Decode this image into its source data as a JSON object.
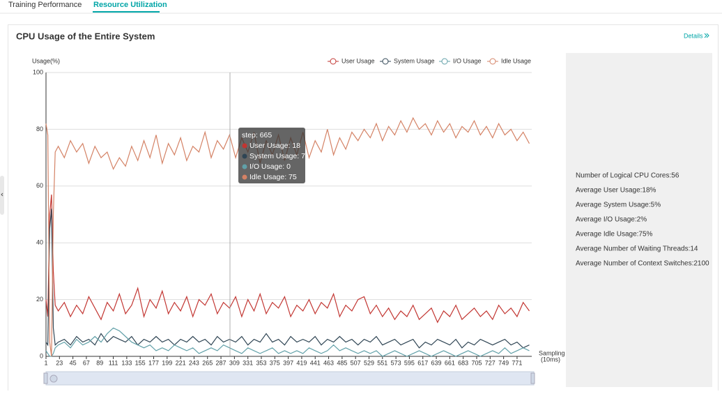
{
  "tabs": [
    "Training Performance",
    "Resource Utilization"
  ],
  "card": {
    "title": "CPU Usage of the Entire System",
    "details": "Details"
  },
  "chart_data": {
    "type": "line",
    "y_label": "Usage(%)",
    "x_label": [
      "Sampling",
      "(10ms)"
    ],
    "x": [
      1,
      4,
      7,
      10,
      13,
      16,
      21,
      31,
      41,
      51,
      61,
      71,
      81,
      91,
      101,
      111,
      121,
      131,
      141,
      151,
      161,
      171,
      181,
      191,
      201,
      211,
      221,
      231,
      241,
      251,
      261,
      271,
      281,
      291,
      301,
      311,
      321,
      331,
      341,
      351,
      361,
      371,
      381,
      391,
      401,
      411,
      421,
      431,
      441,
      451,
      461,
      471,
      481,
      491,
      501,
      511,
      521,
      531,
      541,
      551,
      561,
      571,
      581,
      591,
      601,
      611,
      621,
      631,
      641,
      651,
      661,
      671,
      681,
      691,
      701,
      711,
      721,
      731,
      741,
      751,
      761,
      771,
      781,
      791
    ],
    "xlim": [
      1,
      795
    ],
    "xticks": [
      1,
      23,
      45,
      67,
      89,
      111,
      133,
      155,
      177,
      199,
      221,
      243,
      265,
      287,
      309,
      331,
      353,
      375,
      397,
      419,
      441,
      463,
      485,
      507,
      529,
      551,
      573,
      595,
      617,
      639,
      661,
      683,
      705,
      727,
      749,
      771
    ],
    "ylim": [
      0,
      100
    ],
    "yticks": [
      0,
      20,
      40,
      60,
      80,
      100
    ],
    "grid": true,
    "series": [
      {
        "name": "User Usage",
        "color": "#c23531",
        "values": [
          20,
          14,
          50,
          57,
          30,
          18,
          16,
          19,
          14,
          18,
          15,
          21,
          17,
          13,
          19,
          16,
          22,
          15,
          18,
          24,
          14,
          20,
          17,
          23,
          15,
          19,
          16,
          21,
          14,
          20,
          18,
          22,
          15,
          19,
          17,
          21,
          14,
          20,
          16,
          22,
          15,
          19,
          17,
          21,
          14,
          18,
          16,
          20,
          15,
          19,
          17,
          22,
          14,
          18,
          16,
          20,
          21,
          15,
          18,
          14,
          17,
          13,
          16,
          14,
          18,
          13,
          15,
          17,
          12,
          16,
          14,
          18,
          13,
          15,
          17,
          14,
          16,
          13,
          18,
          15,
          17,
          14,
          19,
          16
        ]
      },
      {
        "name": "System Usage",
        "color": "#2f4554",
        "values": [
          5,
          4,
          45,
          52,
          10,
          4,
          5,
          6,
          4,
          7,
          5,
          6,
          4,
          8,
          5,
          7,
          6,
          5,
          7,
          4,
          6,
          5,
          7,
          5,
          6,
          4,
          6,
          5,
          7,
          5,
          6,
          4,
          7,
          5,
          6,
          5,
          7,
          4,
          6,
          5,
          8,
          5,
          6,
          4,
          7,
          5,
          6,
          5,
          7,
          4,
          6,
          5,
          7,
          5,
          6,
          4,
          6,
          5,
          7,
          4,
          5,
          6,
          4,
          5,
          6,
          3,
          5,
          4,
          6,
          5,
          4,
          6,
          3,
          5,
          4,
          6,
          5,
          4,
          5,
          6,
          4,
          5,
          3,
          4
        ]
      },
      {
        "name": "I/O Usage",
        "color": "#61a0a8",
        "values": [
          2,
          1,
          0,
          0,
          1,
          3,
          4,
          5,
          3,
          6,
          4,
          5,
          7,
          5,
          8,
          10,
          9,
          7,
          5,
          4,
          3,
          4,
          2,
          3,
          2,
          4,
          3,
          2,
          3,
          1,
          2,
          3,
          2,
          4,
          3,
          2,
          1,
          3,
          2,
          1,
          2,
          3,
          1,
          2,
          1,
          2,
          1,
          3,
          2,
          1,
          2,
          4,
          2,
          3,
          2,
          1,
          2,
          1,
          2,
          0,
          1,
          2,
          1,
          0,
          1,
          2,
          1,
          0,
          1,
          2,
          1,
          0,
          1,
          2,
          1,
          0,
          1,
          2,
          1,
          3,
          1,
          2,
          3,
          2
        ]
      },
      {
        "name": "Idle Usage",
        "color": "#d48265",
        "values": [
          82,
          78,
          5,
          0,
          50,
          72,
          74,
          70,
          76,
          72,
          75,
          68,
          74,
          70,
          72,
          66,
          70,
          67,
          74,
          69,
          76,
          70,
          78,
          68,
          75,
          71,
          77,
          69,
          74,
          72,
          79,
          70,
          76,
          73,
          78,
          70,
          77,
          72,
          79,
          68,
          76,
          71,
          78,
          69,
          77,
          71,
          79,
          70,
          76,
          72,
          80,
          71,
          77,
          73,
          79,
          76,
          80,
          77,
          82,
          76,
          81,
          78,
          83,
          79,
          84,
          80,
          82,
          78,
          83,
          79,
          82,
          77,
          81,
          79,
          83,
          78,
          81,
          77,
          82,
          78,
          80,
          76,
          79,
          75
        ]
      }
    ],
    "tooltip": {
      "title": "step: 665",
      "lines": [
        "User Usage: 18",
        "System Usage: 7",
        "I/O Usage: 0",
        "Idle Usage: 75"
      ]
    }
  },
  "stats": [
    "Number of Logical CPU Cores:56",
    "Average User Usage:18%",
    "Average System Usage:5%",
    "Average I/O Usage:2%",
    "Average Idle Usage:75%",
    "Average Number of Waiting Threads:14",
    "Average Number of Context Switches:2100"
  ]
}
